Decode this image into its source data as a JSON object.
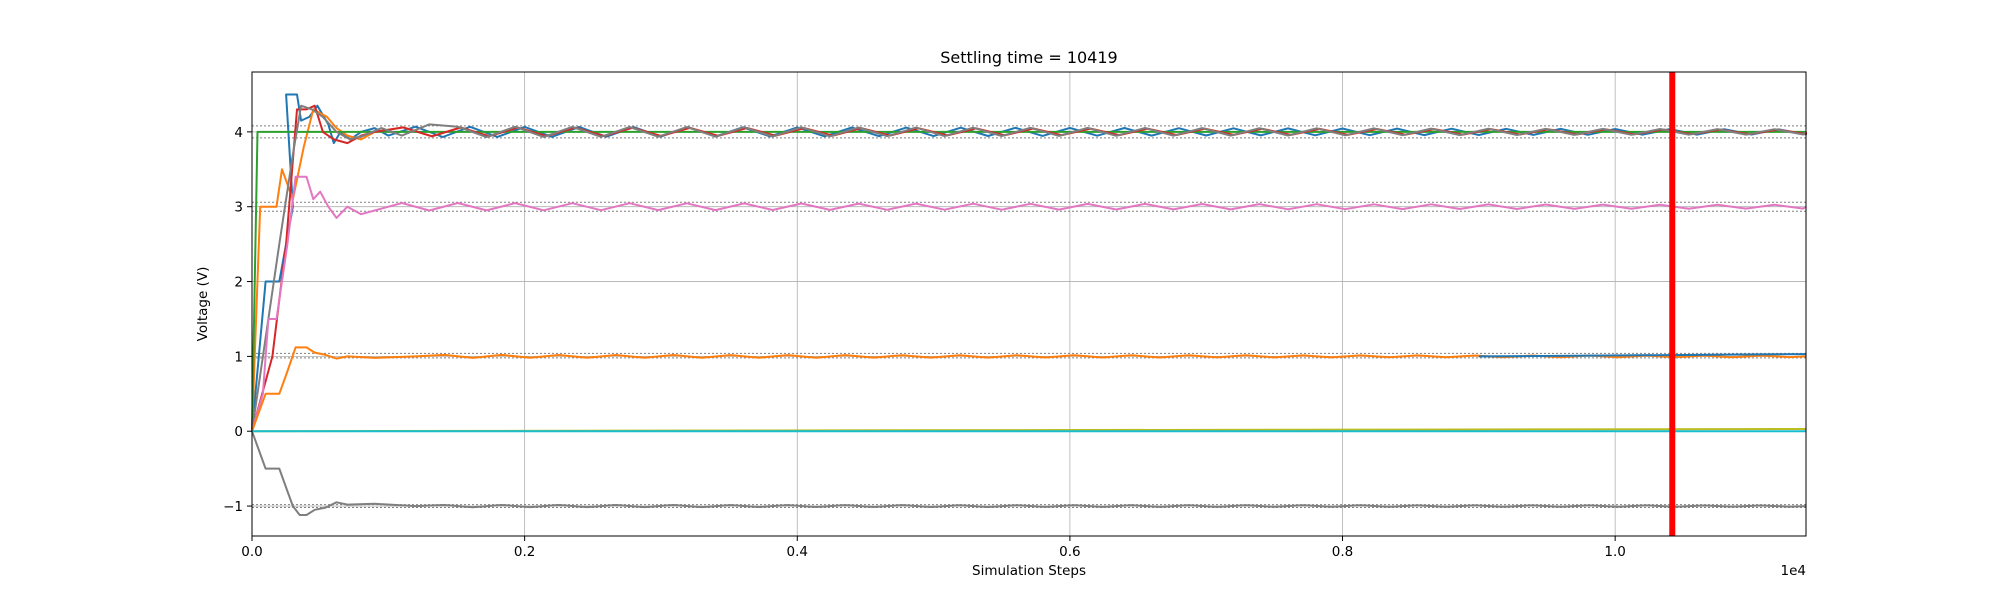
{
  "chart_data": {
    "type": "line",
    "title": "Settling time = 10419",
    "xlabel": "Simulation Steps",
    "ylabel": "Voltage (V)",
    "x_offset_label": "1e4",
    "xlim": [
      0,
      11400
    ],
    "ylim": [
      -1.4,
      4.8
    ],
    "x_ticks": [
      0,
      2000,
      4000,
      6000,
      8000,
      10000
    ],
    "x_tick_labels": [
      "0.0",
      "0.2",
      "0.4",
      "0.6",
      "0.8",
      "1.0"
    ],
    "y_ticks": [
      -1,
      0,
      1,
      2,
      3,
      4
    ],
    "y_tick_labels": [
      "−1",
      "0",
      "1",
      "2",
      "3",
      "4"
    ],
    "grid": true,
    "settling_time": 10419,
    "settling_line_color": "#ff0000",
    "tolerance_band_color": "#808080",
    "tolerance_bands": [
      {
        "target": 4,
        "lower": 3.92,
        "upper": 4.08
      },
      {
        "target": 3,
        "lower": 2.94,
        "upper": 3.06
      },
      {
        "target": 1,
        "lower": 0.98,
        "upper": 1.04
      },
      {
        "target": -1,
        "lower": -1.02,
        "upper": -0.98
      }
    ],
    "series": [
      {
        "color": "#1f77b4",
        "target": 4,
        "start": 0,
        "steps": [
          [
            0,
            0
          ],
          [
            100,
            2
          ],
          [
            200,
            2
          ],
          [
            300,
            3
          ],
          [
            250,
            4.5
          ],
          [
            330,
            4.5
          ],
          [
            360,
            4.15
          ],
          [
            420,
            4.2
          ],
          [
            480,
            4.35
          ],
          [
            560,
            4.1
          ],
          [
            600,
            3.85
          ],
          [
            650,
            4.0
          ],
          [
            720,
            3.9
          ],
          [
            800,
            4.0
          ],
          [
            900,
            4.05
          ],
          [
            1000,
            3.95
          ]
        ],
        "amp": 0.07,
        "period": 400,
        "end_value": 4.0
      },
      {
        "color": "#ff7f0e",
        "target": 4,
        "start": 0,
        "steps": [
          [
            0,
            0
          ],
          [
            60,
            3
          ],
          [
            180,
            3
          ],
          [
            220,
            3.5
          ],
          [
            300,
            3.1
          ],
          [
            380,
            3.8
          ],
          [
            450,
            4.3
          ],
          [
            550,
            4.2
          ],
          [
            620,
            4.05
          ],
          [
            700,
            3.95
          ],
          [
            800,
            3.9
          ],
          [
            900,
            4.0
          ]
        ],
        "amp": 0.06,
        "period": 420,
        "end_value": 4.0
      },
      {
        "color": "#2ca02c",
        "target": 4,
        "start": 0,
        "steps": [
          [
            0,
            0
          ],
          [
            40,
            4
          ],
          [
            8000,
            4
          ],
          [
            11400,
            4
          ]
        ],
        "amp": 0.03,
        "period": 420,
        "end_value": 4.0
      },
      {
        "color": "#d62728",
        "target": 4,
        "start": 0,
        "steps": [
          [
            0,
            0
          ],
          [
            150,
            1
          ],
          [
            250,
            2.5
          ],
          [
            330,
            4.3
          ],
          [
            400,
            4.3
          ],
          [
            460,
            4.35
          ],
          [
            520,
            4.0
          ],
          [
            600,
            3.9
          ],
          [
            700,
            3.85
          ],
          [
            800,
            3.95
          ],
          [
            900,
            4.0
          ]
        ],
        "amp": 0.06,
        "period": 420,
        "end_value": 4.0
      },
      {
        "color": "#7f7f7f",
        "target": 4,
        "start": 0,
        "steps": [
          [
            0,
            0
          ],
          [
            200,
            2.5
          ],
          [
            300,
            3.7
          ],
          [
            360,
            4.35
          ],
          [
            440,
            4.3
          ],
          [
            520,
            4.2
          ],
          [
            620,
            4.0
          ],
          [
            720,
            3.9
          ],
          [
            820,
            3.95
          ],
          [
            950,
            4.05
          ],
          [
            1100,
            3.95
          ],
          [
            1300,
            4.1
          ]
        ],
        "amp": 0.07,
        "period": 420,
        "end_value": 4.0
      },
      {
        "color": "#e377c2",
        "target": 3,
        "start": 0,
        "steps": [
          [
            0,
            0
          ],
          [
            80,
            0.5
          ],
          [
            120,
            1.5
          ],
          [
            180,
            1.5
          ],
          [
            260,
            2.5
          ],
          [
            320,
            3.4
          ],
          [
            400,
            3.4
          ],
          [
            450,
            3.1
          ],
          [
            500,
            3.2
          ],
          [
            560,
            3.0
          ],
          [
            620,
            2.85
          ],
          [
            700,
            3.0
          ],
          [
            800,
            2.9
          ],
          [
            900,
            2.95
          ],
          [
            1100,
            3.05
          ],
          [
            1300,
            2.95
          ]
        ],
        "amp": 0.05,
        "period": 420,
        "end_value": 3.0
      },
      {
        "color": "#ff7f0e",
        "target": 1,
        "start": 0,
        "steps": [
          [
            0,
            0
          ],
          [
            100,
            0.5
          ],
          [
            200,
            0.5
          ],
          [
            260,
            0.8
          ],
          [
            320,
            1.12
          ],
          [
            400,
            1.12
          ],
          [
            460,
            1.05
          ],
          [
            540,
            1.02
          ],
          [
            620,
            0.97
          ],
          [
            700,
            1.0
          ],
          [
            900,
            0.98
          ],
          [
            1200,
            1.0
          ]
        ],
        "amp": 0.02,
        "period": 420,
        "end_value": 1.0
      },
      {
        "color": "#1f77b4",
        "target": 1,
        "start": 9000,
        "steps": [
          [
            9000,
            1.0
          ],
          [
            11400,
            1.03
          ]
        ],
        "amp": 0.0,
        "period": 420,
        "end_value": 1.03
      },
      {
        "color": "#7f7f7f",
        "target": -1,
        "start": 0,
        "steps": [
          [
            0,
            0
          ],
          [
            100,
            -0.5
          ],
          [
            200,
            -0.5
          ],
          [
            260,
            -0.8
          ],
          [
            300,
            -1.0
          ],
          [
            350,
            -1.12
          ],
          [
            400,
            -1.12
          ],
          [
            460,
            -1.05
          ],
          [
            540,
            -1.02
          ],
          [
            620,
            -0.95
          ],
          [
            700,
            -0.98
          ],
          [
            900,
            -0.97
          ],
          [
            1200,
            -1.0
          ]
        ],
        "amp": 0.015,
        "period": 420,
        "end_value": -1.0
      },
      {
        "color": "#bcbd22",
        "target": 0,
        "start": 0,
        "steps": [
          [
            0,
            0
          ],
          [
            11400,
            0.03
          ]
        ],
        "amp": 0.0,
        "period": 420,
        "end_value": 0.03
      },
      {
        "color": "#17becf",
        "target": 0,
        "start": 0,
        "steps": [
          [
            0,
            0
          ],
          [
            11400,
            0
          ]
        ],
        "amp": 0.0,
        "period": 420,
        "end_value": 0.0
      }
    ]
  }
}
